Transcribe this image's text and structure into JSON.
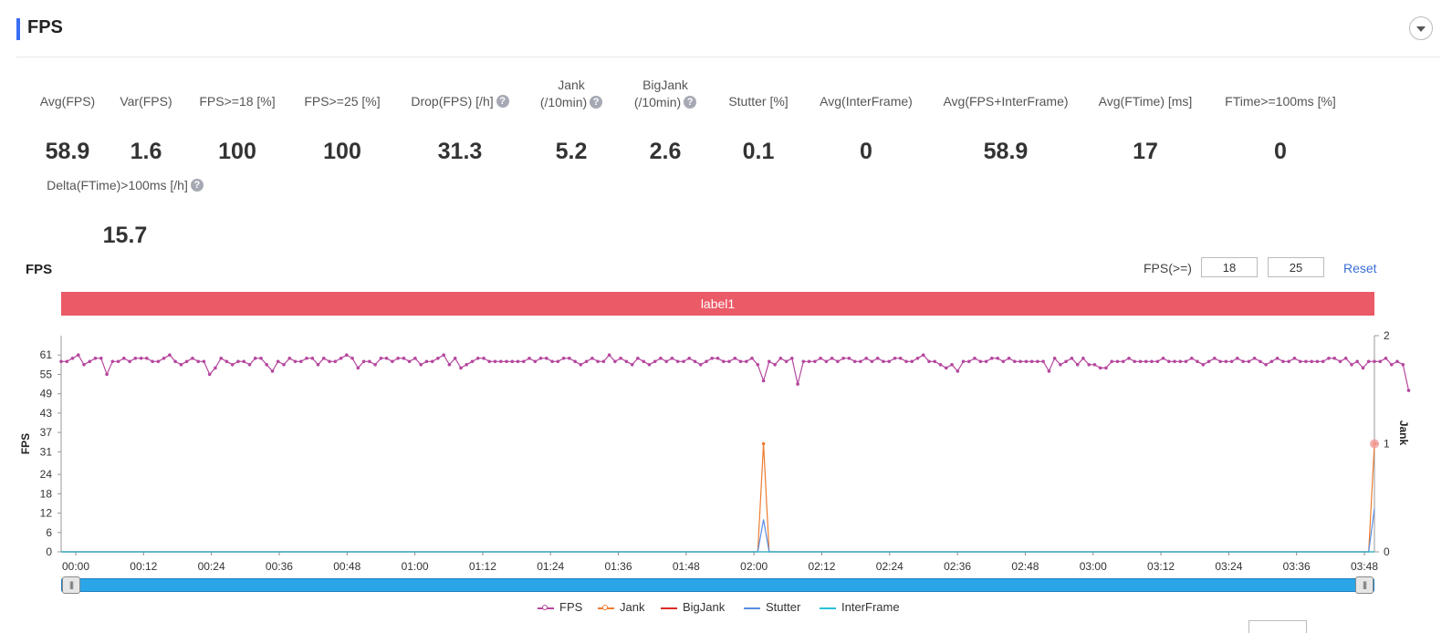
{
  "header": {
    "title": "FPS",
    "collapse_icon": "chevron-down-icon"
  },
  "metrics": [
    {
      "label": "Avg(FPS)",
      "value": "58.9",
      "help": false
    },
    {
      "label": "Var(FPS)",
      "value": "1.6",
      "help": false
    },
    {
      "label": "FPS>=18 [%]",
      "value": "100",
      "help": false
    },
    {
      "label": "FPS>=25 [%]",
      "value": "100",
      "help": false
    },
    {
      "label": "Drop(FPS) [/h]",
      "value": "31.3",
      "help": true
    },
    {
      "label": "Jank",
      "label2": "(/10min)",
      "value": "5.2",
      "help": true
    },
    {
      "label": "BigJank",
      "label2": "(/10min)",
      "value": "2.6",
      "help": true
    },
    {
      "label": "Stutter [%]",
      "value": "0.1",
      "help": false
    },
    {
      "label": "Avg(InterFrame)",
      "value": "0",
      "help": false
    },
    {
      "label": "Avg(FPS+InterFrame)",
      "value": "58.9",
      "help": false
    },
    {
      "label": "Avg(FTime) [ms]",
      "value": "17",
      "help": false
    },
    {
      "label": "FTime>=100ms [%]",
      "value": "0",
      "help": false
    },
    {
      "label": "Delta(FTime)>100ms [/h]",
      "value": "15.7",
      "help": true
    }
  ],
  "help_glyph": "?",
  "chart_section": {
    "title": "FPS",
    "threshold_label": "FPS(>=)",
    "threshold_values": [
      "18",
      "25"
    ],
    "reset_label": "Reset",
    "band_label": "label1",
    "band_color": "#eb5a67",
    "slider_color": "#2aa5e8"
  },
  "chart_data": {
    "type": "line",
    "title": "",
    "ylabel": "FPS",
    "y2label": "Jank",
    "y_ticks": [
      0,
      6,
      12,
      18,
      24,
      31,
      37,
      43,
      49,
      55,
      61
    ],
    "ylim": [
      0,
      67
    ],
    "y2_ticks": [
      0,
      1,
      2
    ],
    "y2lim": [
      0,
      2
    ],
    "x_ticks": [
      "00:00",
      "00:12",
      "00:24",
      "00:36",
      "00:48",
      "01:00",
      "01:12",
      "01:24",
      "01:36",
      "01:48",
      "02:00",
      "02:12",
      "02:24",
      "02:36",
      "02:48",
      "03:00",
      "03:12",
      "03:24",
      "03:36",
      "03:48"
    ],
    "xlim_seconds": [
      0,
      230
    ],
    "legend_position": "bottom-center",
    "series": [
      {
        "name": "FPS",
        "axis": "left",
        "color": "#b5479e",
        "markers": true,
        "sample_interval_s": 1,
        "values": [
          59,
          59,
          60,
          61,
          58,
          59,
          60,
          60,
          55,
          59,
          59,
          60,
          59,
          60,
          60,
          60,
          59,
          59,
          60,
          61,
          59,
          58,
          59,
          60,
          59,
          59,
          55,
          57,
          60,
          59,
          58,
          59,
          59,
          58,
          60,
          60,
          58,
          56,
          59,
          58,
          60,
          59,
          59,
          60,
          60,
          58,
          60,
          59,
          59,
          60,
          61,
          60,
          57,
          59,
          59,
          58,
          60,
          60,
          59,
          60,
          60,
          59,
          60,
          58,
          59,
          59,
          60,
          61,
          58,
          60,
          57,
          58,
          59,
          60,
          60,
          59,
          59,
          59,
          59,
          59,
          59,
          59,
          60,
          59,
          60,
          60,
          59,
          59,
          60,
          60,
          59,
          58,
          59,
          60,
          59,
          59,
          61,
          59,
          60,
          59,
          58,
          60,
          59,
          58,
          59,
          60,
          59,
          60,
          59,
          59,
          60,
          59,
          58,
          59,
          60,
          60,
          59,
          59,
          60,
          59,
          59,
          60,
          58,
          53,
          59,
          58,
          60,
          59,
          60,
          52,
          59,
          59,
          59,
          60,
          59,
          60,
          59,
          60,
          60,
          59,
          59,
          60,
          59,
          60,
          59,
          59,
          60,
          60,
          59,
          59,
          60,
          61,
          59,
          59,
          58,
          57,
          58,
          56,
          59,
          59,
          60,
          59,
          59,
          60,
          60,
          59,
          60,
          59,
          59,
          59,
          59,
          59,
          59,
          56,
          60,
          58,
          59,
          60,
          58,
          60,
          58,
          58,
          57,
          57,
          59,
          59,
          59,
          60,
          59,
          59,
          59,
          59,
          59,
          60,
          59,
          59,
          59,
          59,
          60,
          59,
          58,
          59,
          60,
          59,
          59,
          59,
          60,
          59,
          59,
          60,
          59,
          58,
          59,
          60,
          59,
          59,
          60,
          59,
          59,
          59,
          59,
          59,
          60,
          60,
          59,
          60,
          58,
          59,
          57,
          59,
          59,
          59,
          60,
          58,
          59,
          58,
          50
        ]
      },
      {
        "name": "Jank",
        "axis": "right",
        "color": "#ed7d31",
        "markers": true,
        "points": [
          [
            0,
            0
          ],
          [
            122,
            0
          ],
          [
            123,
            1
          ],
          [
            124,
            0
          ],
          [
            229,
            0
          ],
          [
            230,
            1
          ]
        ]
      },
      {
        "name": "BigJank",
        "axis": "right",
        "color": "#dc2a2a",
        "markers": false,
        "points": [
          [
            0,
            0
          ],
          [
            230,
            0
          ]
        ]
      },
      {
        "name": "Stutter",
        "axis": "right",
        "color": "#5b8de0",
        "markers": false,
        "points": [
          [
            0,
            0
          ],
          [
            122,
            0
          ],
          [
            123,
            0.3
          ],
          [
            124,
            0
          ],
          [
            229,
            0
          ],
          [
            230,
            0.4
          ]
        ]
      },
      {
        "name": "InterFrame",
        "axis": "right",
        "color": "#27c2d9",
        "markers": false,
        "points": [
          [
            0,
            0
          ],
          [
            230,
            0
          ]
        ]
      }
    ]
  }
}
